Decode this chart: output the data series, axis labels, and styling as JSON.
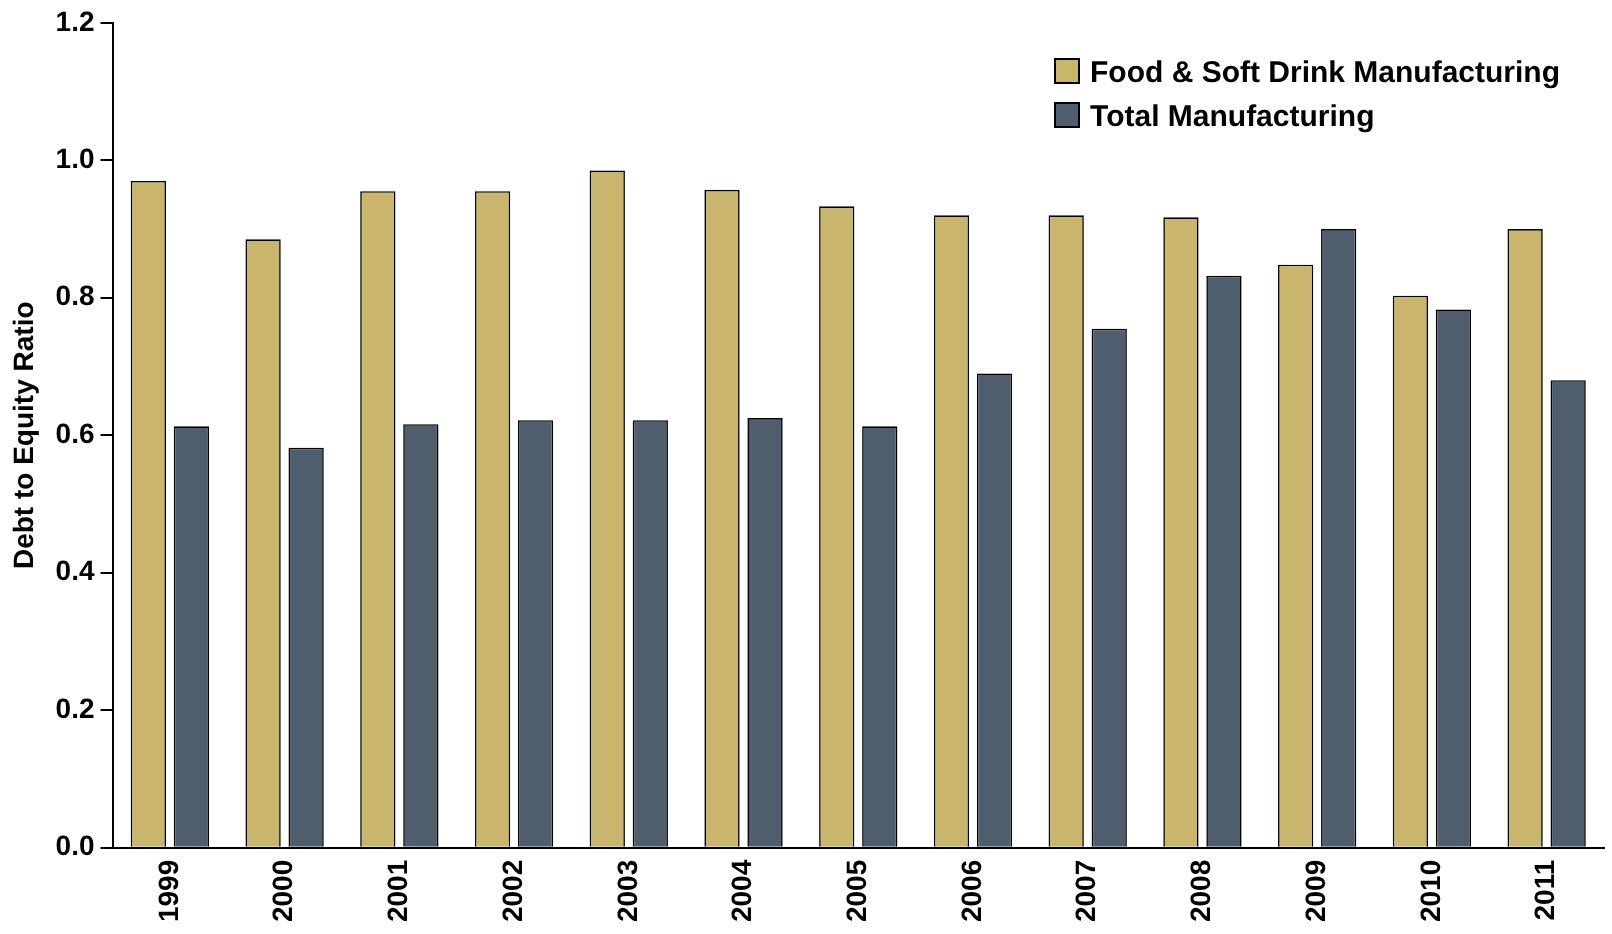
{
  "chart_data": {
    "type": "bar",
    "ylabel": "Debt to Equity Ratio",
    "categories": [
      "1999",
      "2000",
      "2001",
      "2002",
      "2003",
      "2004",
      "2005",
      "2006",
      "2007",
      "2008",
      "2009",
      "2010",
      "2011"
    ],
    "series": [
      {
        "name": "Food & Soft Drink Manufacturing",
        "color": "#c9b56b",
        "values": [
          0.97,
          0.885,
          0.955,
          0.955,
          0.985,
          0.957,
          0.933,
          0.92,
          0.92,
          0.917,
          0.848,
          0.803,
          0.9
        ]
      },
      {
        "name": "Total Manufacturing",
        "color": "#4f5e6d",
        "values": [
          0.613,
          0.582,
          0.616,
          0.622,
          0.622,
          0.625,
          0.613,
          0.69,
          0.755,
          0.832,
          0.9,
          0.783,
          0.68
        ]
      }
    ],
    "ylim": [
      0,
      1.2
    ],
    "yticks": [
      {
        "value": 0,
        "label": "0.0"
      },
      {
        "value": 0.2,
        "label": "0.2"
      },
      {
        "value": 0.4,
        "label": "0.4"
      },
      {
        "value": 0.6,
        "label": "0.6"
      },
      {
        "value": 0.8,
        "label": "0.8"
      },
      {
        "value": 1,
        "label": "1.0"
      },
      {
        "value": 1.2,
        "label": "1.2"
      }
    ],
    "grid": false,
    "legend": "top right"
  }
}
